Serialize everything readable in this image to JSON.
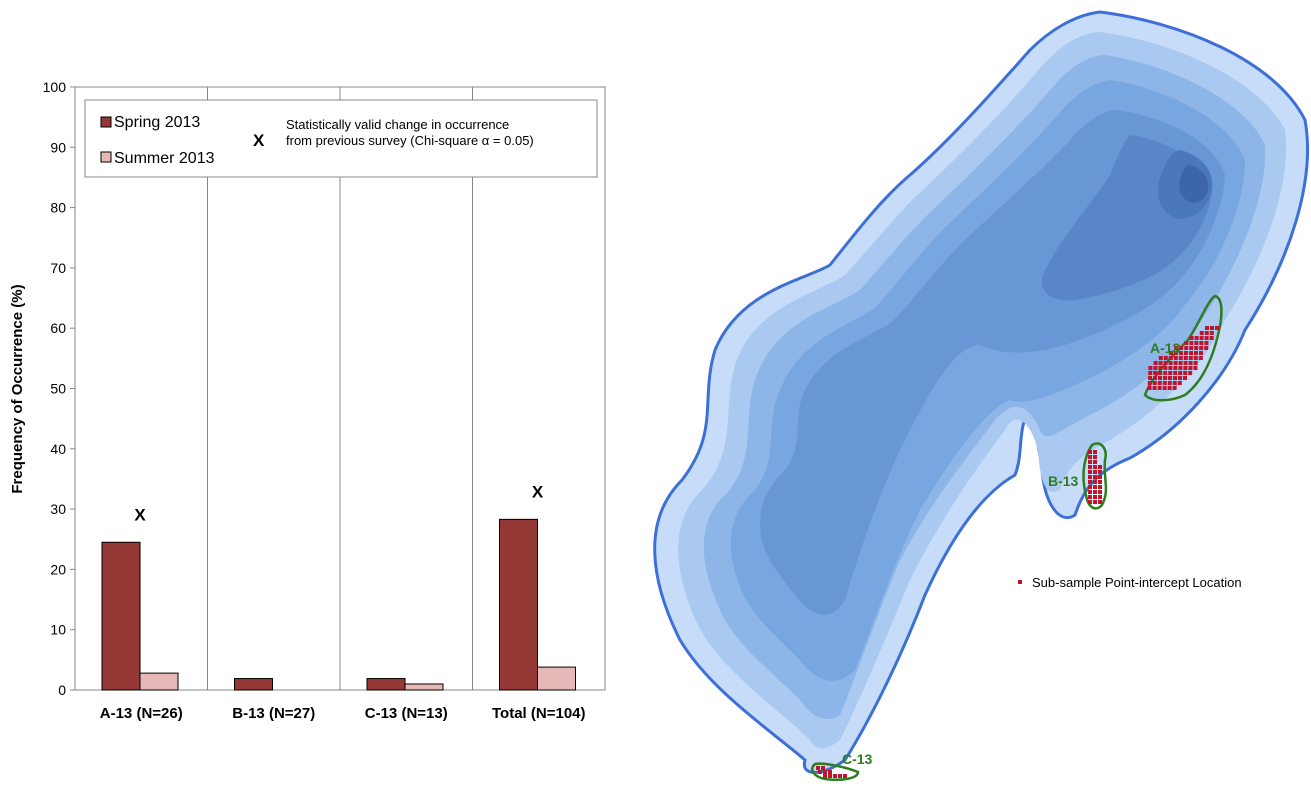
{
  "chart_data": {
    "type": "bar",
    "categories": [
      "A-13 (N=26)",
      "B-13 (N=27)",
      "C-13 (N=13)",
      "Total (N=104)"
    ],
    "series": [
      {
        "name": "Spring 2013",
        "values": [
          24.5,
          1.9,
          1.9,
          28.3
        ],
        "color": "#953735"
      },
      {
        "name": "Summer 2013",
        "values": [
          2.8,
          0,
          1.0,
          3.8
        ],
        "color": "#e6b9b8"
      }
    ],
    "title": "",
    "xlabel": "",
    "ylabel": "Frequency of Occurrence (%)",
    "ylim": [
      0,
      100
    ],
    "yticks": [
      "0",
      "10",
      "20",
      "30",
      "40",
      "50",
      "60",
      "70",
      "80",
      "90",
      "100"
    ],
    "grid": false,
    "legend_placement": "top",
    "significance": {
      "symbol": "X",
      "note_line1": "Statistically valid change in occurrence",
      "note_line2": "from previous survey (Chi-square α = 0.05)",
      "flagged_categories": [
        0,
        3
      ]
    }
  },
  "map": {
    "site_labels": [
      "A-13",
      "B-13",
      "C-13"
    ],
    "legend_label": "Sub-sample Point-intercept Location",
    "site_outline_color": "#2e7d1e",
    "point_color": "#c0142c",
    "shoreline_color": "#3d6fd8"
  }
}
